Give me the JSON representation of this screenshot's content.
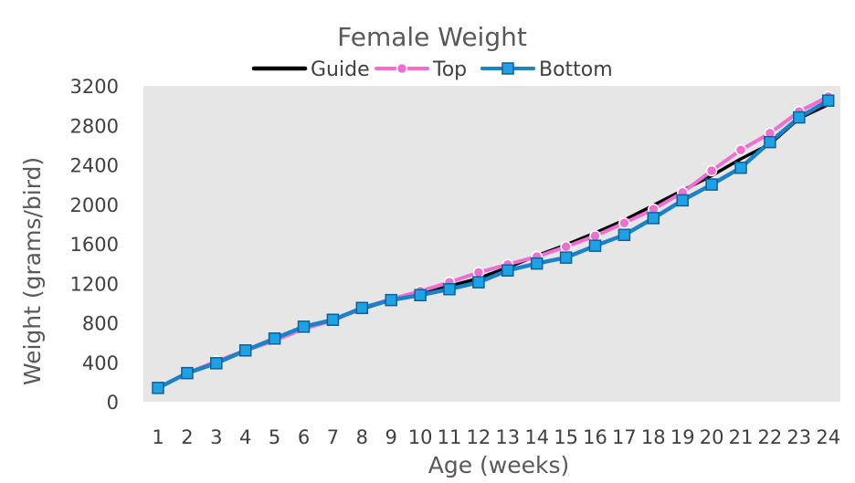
{
  "chart_data": {
    "type": "line",
    "title": "Female Weight",
    "xlabel": "Age (weeks)",
    "ylabel": "Weight (grams/bird)",
    "categories": [
      "1",
      "2",
      "3",
      "4",
      "5",
      "6",
      "7",
      "8",
      "9",
      "10",
      "11",
      "12",
      "13",
      "14",
      "15",
      "16",
      "17",
      "18",
      "19",
      "20",
      "21",
      "22",
      "23",
      "24"
    ],
    "ylim": [
      0,
      3200
    ],
    "yticks": [
      0,
      400,
      800,
      1200,
      1600,
      2000,
      2400,
      2800,
      3200
    ],
    "grid": false,
    "legend_position": "top",
    "plot_background": "#e6e6e6",
    "series": [
      {
        "name": "Guide",
        "color": "#000000",
        "marker": "none",
        "values": [
          140,
          290,
          400,
          520,
          620,
          740,
          830,
          940,
          1030,
          1100,
          1170,
          1250,
          1360,
          1480,
          1590,
          1710,
          1840,
          1990,
          2140,
          2290,
          2460,
          2610,
          2870,
          3010
        ]
      },
      {
        "name": "Top",
        "color": "#f06ed2",
        "marker": "circle",
        "values": [
          140,
          290,
          410,
          520,
          620,
          740,
          820,
          950,
          1040,
          1120,
          1210,
          1310,
          1390,
          1470,
          1570,
          1680,
          1810,
          1950,
          2120,
          2340,
          2550,
          2720,
          2940,
          3090
        ]
      },
      {
        "name": "Bottom",
        "color": "#1a82c8",
        "marker": "square",
        "values": [
          140,
          290,
          390,
          520,
          640,
          760,
          830,
          950,
          1030,
          1080,
          1140,
          1210,
          1330,
          1400,
          1460,
          1580,
          1690,
          1860,
          2040,
          2200,
          2370,
          2630,
          2880,
          3050
        ]
      }
    ]
  }
}
